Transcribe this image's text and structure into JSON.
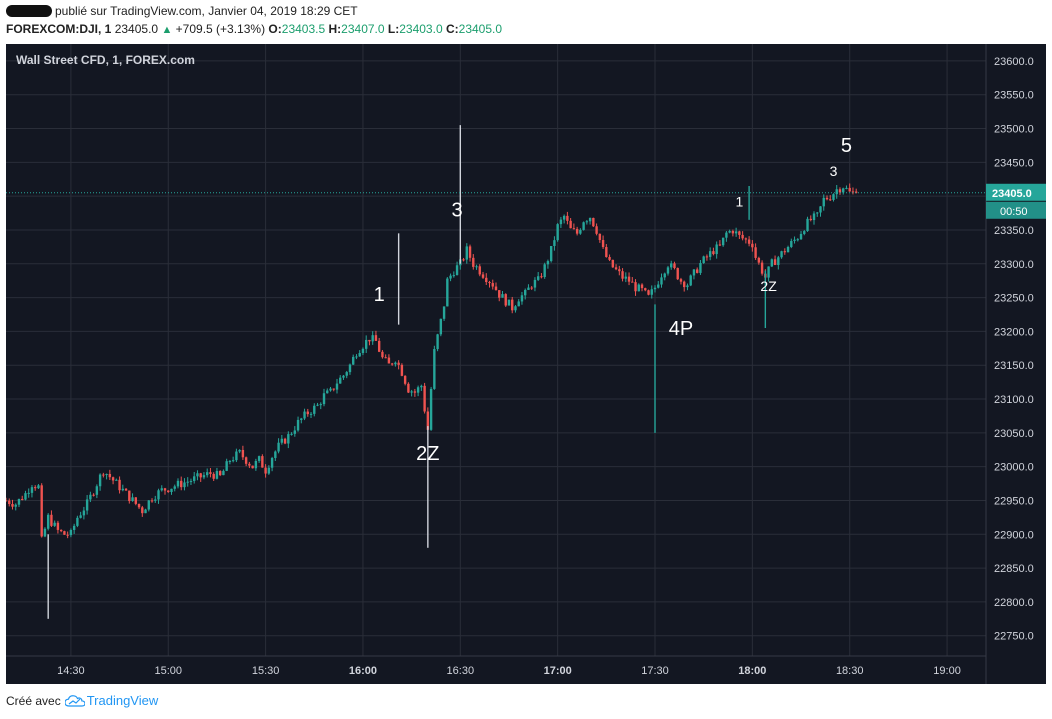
{
  "header": {
    "published": "publié sur TradingView.com, Janvier 04, 2019 18:29 CET",
    "symbol": "FOREXCOM:DJI, 1",
    "last": "23405.0",
    "change": "+709.5 (+3.13%)",
    "o_label": "O:",
    "o": "23403.5",
    "h_label": "H:",
    "h": "23407.0",
    "l_label": "L:",
    "l": "23403.0",
    "c_label": "C:",
    "c": "23405.0"
  },
  "footer": {
    "created_with": "Créé avec",
    "brand": "TradingView"
  },
  "colors": {
    "background": "#131722",
    "grid": "#2a2e39",
    "up": "#26a69a",
    "down": "#ef5350",
    "price_tag": "#26a69a",
    "price_line": "#26a69a",
    "annotation_line": "#d1d4dc",
    "text": "#ffffff",
    "axis_text": "#d1d4dc"
  },
  "chart_data": {
    "type": "candlestick",
    "title": "Wall Street CFD, 1, FOREX.com",
    "y_ticks": [
      22750,
      22800,
      22850,
      22900,
      22950,
      23000,
      23050,
      23100,
      23150,
      23200,
      23250,
      23300,
      23350,
      23400,
      23450,
      23500,
      23550,
      23600
    ],
    "y_tick_labels": [
      "22750.0",
      "22800.0",
      "22850.0",
      "22900.0",
      "22950.0",
      "23000.0",
      "23050.0",
      "23100.0",
      "23150.0",
      "23200.0",
      "23250.0",
      "23300.0",
      "23350.0",
      "23400.0",
      "23450.0",
      "23500.0",
      "23550.0",
      "23600.0"
    ],
    "ylim": [
      22720,
      23625
    ],
    "x_ticks": [
      "14:30",
      "15:00",
      "15:30",
      "16:00",
      "16:30",
      "17:00",
      "17:30",
      "18:00",
      "18:30",
      "19:00"
    ],
    "x_ticks_bold": [
      "16:00",
      "17:00",
      "18:00"
    ],
    "x_tick_minutes": [
      870,
      900,
      930,
      960,
      990,
      1020,
      1050,
      1080,
      1110,
      1140
    ],
    "xlim_minutes": [
      850,
      1152
    ],
    "last_price": 23405.0,
    "last_price_label": "23405.0",
    "countdown": "00:50",
    "close_path": [
      [
        850,
        22950
      ],
      [
        853,
        22945
      ],
      [
        856,
        22960
      ],
      [
        858,
        22975
      ],
      [
        860,
        22970
      ],
      [
        861,
        22890
      ],
      [
        863,
        22925
      ],
      [
        866,
        22905
      ],
      [
        868,
        22900
      ],
      [
        870,
        22900
      ],
      [
        872,
        22925
      ],
      [
        875,
        22945
      ],
      [
        877,
        22965
      ],
      [
        880,
        22995
      ],
      [
        882,
        22985
      ],
      [
        884,
        22975
      ],
      [
        886,
        22965
      ],
      [
        888,
        22955
      ],
      [
        890,
        22945
      ],
      [
        892,
        22935
      ],
      [
        895,
        22955
      ],
      [
        898,
        22965
      ],
      [
        901,
        22970
      ],
      [
        904,
        22975
      ],
      [
        907,
        22980
      ],
      [
        910,
        22985
      ],
      [
        913,
        22990
      ],
      [
        916,
        22985
      ],
      [
        919,
        23010
      ],
      [
        922,
        23020
      ],
      [
        924,
        23010
      ],
      [
        926,
        23000
      ],
      [
        928,
        23010
      ],
      [
        930,
        22995
      ],
      [
        932,
        23015
      ],
      [
        934,
        23030
      ],
      [
        937,
        23045
      ],
      [
        940,
        23065
      ],
      [
        943,
        23080
      ],
      [
        946,
        23090
      ],
      [
        948,
        23105
      ],
      [
        950,
        23110
      ],
      [
        952,
        23125
      ],
      [
        954,
        23135
      ],
      [
        956,
        23150
      ],
      [
        958,
        23170
      ],
      [
        960,
        23180
      ],
      [
        962,
        23190
      ],
      [
        964,
        23185
      ],
      [
        966,
        23160
      ],
      [
        968,
        23150
      ],
      [
        970,
        23160
      ],
      [
        972,
        23140
      ],
      [
        974,
        23115
      ],
      [
        976,
        23110
      ],
      [
        978,
        23120
      ],
      [
        979,
        23085
      ],
      [
        980,
        23055
      ],
      [
        981,
        23115
      ],
      [
        982,
        23170
      ],
      [
        984,
        23215
      ],
      [
        985,
        23240
      ],
      [
        986,
        23275
      ],
      [
        988,
        23290
      ],
      [
        990,
        23300
      ],
      [
        992,
        23320
      ],
      [
        993,
        23310
      ],
      [
        994,
        23300
      ],
      [
        996,
        23290
      ],
      [
        998,
        23280
      ],
      [
        1000,
        23270
      ],
      [
        1002,
        23255
      ],
      [
        1004,
        23245
      ],
      [
        1006,
        23235
      ],
      [
        1008,
        23250
      ],
      [
        1010,
        23255
      ],
      [
        1012,
        23270
      ],
      [
        1014,
        23275
      ],
      [
        1016,
        23295
      ],
      [
        1018,
        23320
      ],
      [
        1020,
        23355
      ],
      [
        1022,
        23370
      ],
      [
        1024,
        23350
      ],
      [
        1026,
        23345
      ],
      [
        1028,
        23365
      ],
      [
        1030,
        23370
      ],
      [
        1032,
        23350
      ],
      [
        1034,
        23320
      ],
      [
        1036,
        23300
      ],
      [
        1038,
        23290
      ],
      [
        1040,
        23280
      ],
      [
        1042,
        23275
      ],
      [
        1044,
        23265
      ],
      [
        1046,
        23260
      ],
      [
        1048,
        23250
      ],
      [
        1050,
        23265
      ],
      [
        1052,
        23285
      ],
      [
        1054,
        23300
      ],
      [
        1056,
        23290
      ],
      [
        1058,
        23275
      ],
      [
        1060,
        23270
      ],
      [
        1062,
        23285
      ],
      [
        1064,
        23300
      ],
      [
        1066,
        23310
      ],
      [
        1068,
        23320
      ],
      [
        1070,
        23325
      ],
      [
        1072,
        23345
      ],
      [
        1074,
        23350
      ],
      [
        1076,
        23340
      ],
      [
        1078,
        23335
      ],
      [
        1080,
        23330
      ],
      [
        1081,
        23310
      ],
      [
        1083,
        23290
      ],
      [
        1084,
        23280
      ],
      [
        1086,
        23300
      ],
      [
        1088,
        23310
      ],
      [
        1090,
        23320
      ],
      [
        1092,
        23330
      ],
      [
        1094,
        23340
      ],
      [
        1096,
        23355
      ],
      [
        1098,
        23365
      ],
      [
        1100,
        23370
      ],
      [
        1102,
        23395
      ],
      [
        1104,
        23400
      ],
      [
        1106,
        23410
      ],
      [
        1108,
        23415
      ],
      [
        1110,
        23405
      ],
      [
        1112,
        23405
      ]
    ],
    "long_wicks": [
      {
        "minute": 863,
        "from": 22775,
        "to": 22900,
        "color": "annotation_line"
      },
      {
        "minute": 971,
        "from": 23210,
        "to": 23345,
        "color": "annotation_line"
      },
      {
        "minute": 980,
        "from": 22880,
        "to": 23060,
        "color": "annotation_line"
      },
      {
        "minute": 990,
        "from": 23300,
        "to": 23505,
        "color": "annotation_line"
      },
      {
        "minute": 1050,
        "from": 23050,
        "to": 23240,
        "color": "up"
      },
      {
        "minute": 1079,
        "from": 23365,
        "to": 23415,
        "color": "up"
      },
      {
        "minute": 1084,
        "from": 23205,
        "to": 23290,
        "color": "up"
      }
    ],
    "annotations": [
      {
        "text": "1",
        "minute": 965,
        "price": 23245,
        "size": "large"
      },
      {
        "text": "2Z",
        "minute": 980,
        "price": 23010,
        "size": "large"
      },
      {
        "text": "3",
        "minute": 989,
        "price": 23370,
        "size": "large"
      },
      {
        "text": "4P",
        "minute": 1058,
        "price": 23195,
        "size": "large"
      },
      {
        "text": "1",
        "minute": 1076,
        "price": 23385,
        "size": "small"
      },
      {
        "text": "2Z",
        "minute": 1085,
        "price": 23260,
        "size": "small"
      },
      {
        "text": "3",
        "minute": 1105,
        "price": 23430,
        "size": "small"
      },
      {
        "text": "5",
        "minute": 1109,
        "price": 23465,
        "size": "large"
      }
    ]
  }
}
